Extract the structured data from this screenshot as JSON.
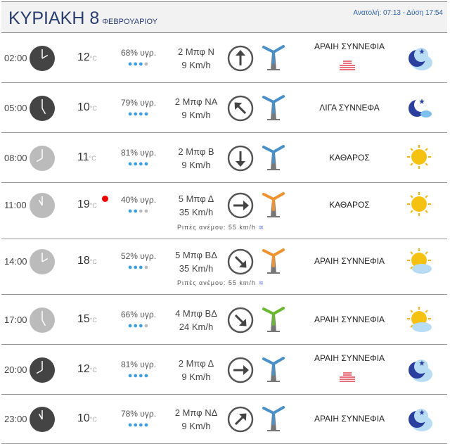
{
  "header": {
    "day": "ΚΥΡΙΑΚΗ 8",
    "month": "ΦΕΒΡΟΥΑΡΙΟΥ",
    "sun_times": "Ανατολή: 07:13  - Δύση 17:54"
  },
  "temp_unit": "°C",
  "gust_label_prefix": "Ριπές ανέμου:",
  "rows": [
    {
      "time": "02:00",
      "hour": 2,
      "night": true,
      "temp": "12",
      "humidity": "68% υγρ.",
      "drops": 3,
      "beaufort": "2 Μπφ Ν",
      "speed": "9 Km/h",
      "arrow_deg": 0,
      "turbine": "#4a90c8",
      "condition": "ΑΡΑΙΗ ΣΥΝΝΕΦΙΑ",
      "haze": true,
      "icon": "moon-cloud-icon"
    },
    {
      "time": "05:00",
      "hour": 5,
      "night": true,
      "temp": "10",
      "humidity": "79% υγρ.",
      "drops": 4,
      "beaufort": "2 Μπφ ΝΑ",
      "speed": "9 Km/h",
      "arrow_deg": -45,
      "turbine": "#4a90c8",
      "condition": "ΛΙΓΑ ΣΥΝΝΕΦΑ",
      "haze": false,
      "icon": "moon-small-cloud-icon"
    },
    {
      "time": "08:00",
      "hour": 8,
      "night": false,
      "temp": "11",
      "humidity": "81% υγρ.",
      "drops": 4,
      "beaufort": "2 Μπφ Β",
      "speed": "9 Km/h",
      "arrow_deg": 180,
      "turbine": "#4a90c8",
      "condition": "ΚΑΘΑΡΟΣ",
      "haze": false,
      "icon": "sun-icon"
    },
    {
      "time": "11:00",
      "hour": 11,
      "night": false,
      "temp": "19",
      "max": true,
      "humidity": "40% υγρ.",
      "drops": 2,
      "beaufort": "5 Μπφ Δ",
      "speed": "35 Km/h",
      "arrow_deg": 90,
      "turbine": "#f0922e",
      "gust": "55 km/h",
      "condition": "ΚΑΘΑΡΟΣ",
      "haze": false,
      "icon": "sun-icon"
    },
    {
      "time": "14:00",
      "hour": 14,
      "night": false,
      "temp": "18",
      "humidity": "52% υγρ.",
      "drops": 3,
      "beaufort": "5 Μπφ ΒΔ",
      "speed": "35 Km/h",
      "arrow_deg": 135,
      "turbine": "#f0922e",
      "gust": "55 km/h",
      "condition": "ΑΡΑΙΗ ΣΥΝΝΕΦΙΑ",
      "haze": false,
      "icon": "sun-cloud-icon"
    },
    {
      "time": "17:00",
      "hour": 17,
      "night": false,
      "temp": "15",
      "humidity": "66% υγρ.",
      "drops": 3,
      "beaufort": "4 Μπφ ΒΔ",
      "speed": "24 Km/h",
      "arrow_deg": 135,
      "turbine": "#6ab82e",
      "condition": "ΑΡΑΙΗ ΣΥΝΝΕΦΙΑ",
      "haze": false,
      "icon": "sun-cloud-icon"
    },
    {
      "time": "20:00",
      "hour": 20,
      "night": true,
      "temp": "12",
      "humidity": "81% υγρ.",
      "drops": 4,
      "beaufort": "2 Μπφ Δ",
      "speed": "9 Km/h",
      "arrow_deg": 90,
      "turbine": "#4a90c8",
      "condition": "ΑΡΑΙΗ ΣΥΝΝΕΦΙΑ",
      "haze": true,
      "icon": "moon-cloud-icon"
    },
    {
      "time": "23:00",
      "hour": 23,
      "night": true,
      "temp": "10",
      "humidity": "78% υγρ.",
      "drops": 4,
      "beaufort": "2 Μπφ ΝΔ",
      "speed": "9 Km/h",
      "arrow_deg": 45,
      "turbine": "#4a90c8",
      "condition": "ΑΡΑΙΗ ΣΥΝΝΕΦΙΑ",
      "haze": false,
      "icon": "moon-cloud-icon"
    }
  ]
}
